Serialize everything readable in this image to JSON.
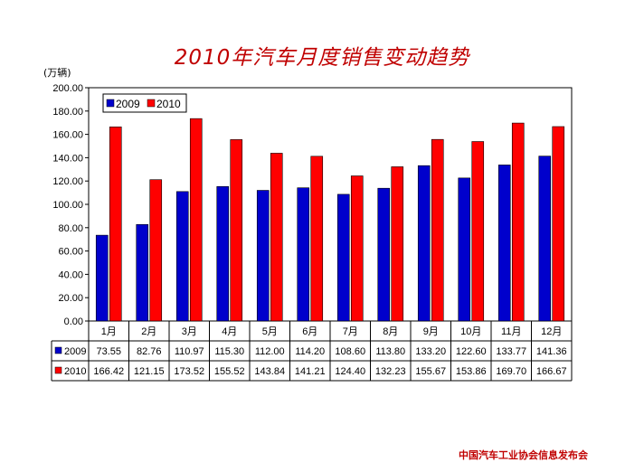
{
  "chart_data": {
    "type": "bar",
    "title": "2010年汽车月度销售变动趋势",
    "ylabel": "(万辆)",
    "categories": [
      "1月",
      "2月",
      "3月",
      "4月",
      "5月",
      "6月",
      "7月",
      "8月",
      "9月",
      "10月",
      "11月",
      "12月"
    ],
    "series": [
      {
        "name": "2009",
        "color": "#0000cc",
        "values": [
          73.55,
          82.76,
          110.97,
          115.3,
          112.0,
          114.2,
          108.6,
          113.8,
          133.2,
          122.6,
          133.77,
          141.36
        ]
      },
      {
        "name": "2010",
        "color": "#ff0000",
        "values": [
          166.42,
          121.15,
          173.52,
          155.52,
          143.84,
          141.21,
          124.4,
          132.23,
          155.67,
          153.86,
          169.7,
          166.67
        ]
      }
    ],
    "ylim": [
      0,
      200
    ],
    "yticks": [
      "0.00",
      "20.00",
      "40.00",
      "60.00",
      "80.00",
      "100.00",
      "120.00",
      "140.00",
      "160.00",
      "180.00",
      "200.00"
    ],
    "legend_position": "top-left",
    "grid": false,
    "data_table": true
  },
  "footer": {
    "source": "中国汽车工业协会信息发布会"
  }
}
